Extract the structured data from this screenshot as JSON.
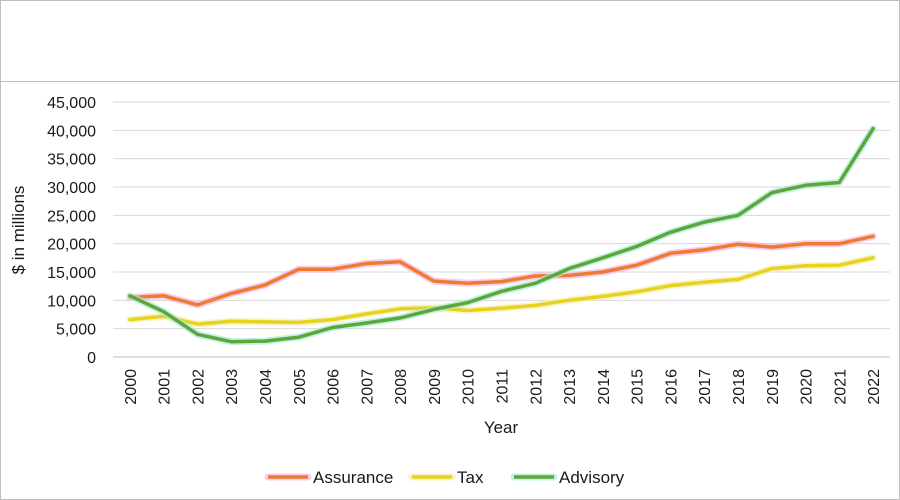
{
  "chart_data": {
    "type": "line",
    "title": "",
    "xlabel": "Year",
    "ylabel": "$ in millions",
    "ylim": [
      0,
      45000
    ],
    "yticks": [
      "0",
      "5,000",
      "10,000",
      "15,000",
      "20,000",
      "25,000",
      "30,000",
      "35,000",
      "40,000",
      "45,000"
    ],
    "categories": [
      "2000",
      "2001",
      "2002",
      "2003",
      "2004",
      "2005",
      "2006",
      "2007",
      "2008",
      "2009",
      "2010",
      "2011",
      "2012",
      "2013",
      "2014",
      "2015",
      "2016",
      "2017",
      "2018",
      "2019",
      "2020",
      "2021",
      "2022"
    ],
    "grid": true,
    "legend_position": "bottom",
    "series": [
      {
        "name": "Assurance",
        "color": "#ee7b30",
        "shadow": "#f4b6e6",
        "values": [
          10500,
          10800,
          9200,
          11200,
          12700,
          15500,
          15500,
          16500,
          16800,
          13400,
          13000,
          13300,
          14300,
          14400,
          15000,
          16200,
          18300,
          18900,
          19900,
          19400,
          20000,
          20000,
          21300
        ]
      },
      {
        "name": "Tax",
        "color": "#e6d21f",
        "shadow": "#f5eeb0",
        "values": [
          6600,
          7200,
          5800,
          6300,
          6200,
          6100,
          6600,
          7600,
          8500,
          8700,
          8200,
          8600,
          9100,
          10000,
          10700,
          11500,
          12600,
          13200,
          13700,
          15600,
          16100,
          16200,
          17500
        ]
      },
      {
        "name": "Advisory",
        "color": "#5ea63b",
        "shadow": "#a9ecd7",
        "values": [
          10800,
          8000,
          4000,
          2700,
          2800,
          3500,
          5200,
          6000,
          6900,
          8400,
          9600,
          11600,
          13000,
          15600,
          17500,
          19500,
          22000,
          23800,
          25000,
          29000,
          30300,
          30800,
          40300
        ]
      }
    ]
  }
}
